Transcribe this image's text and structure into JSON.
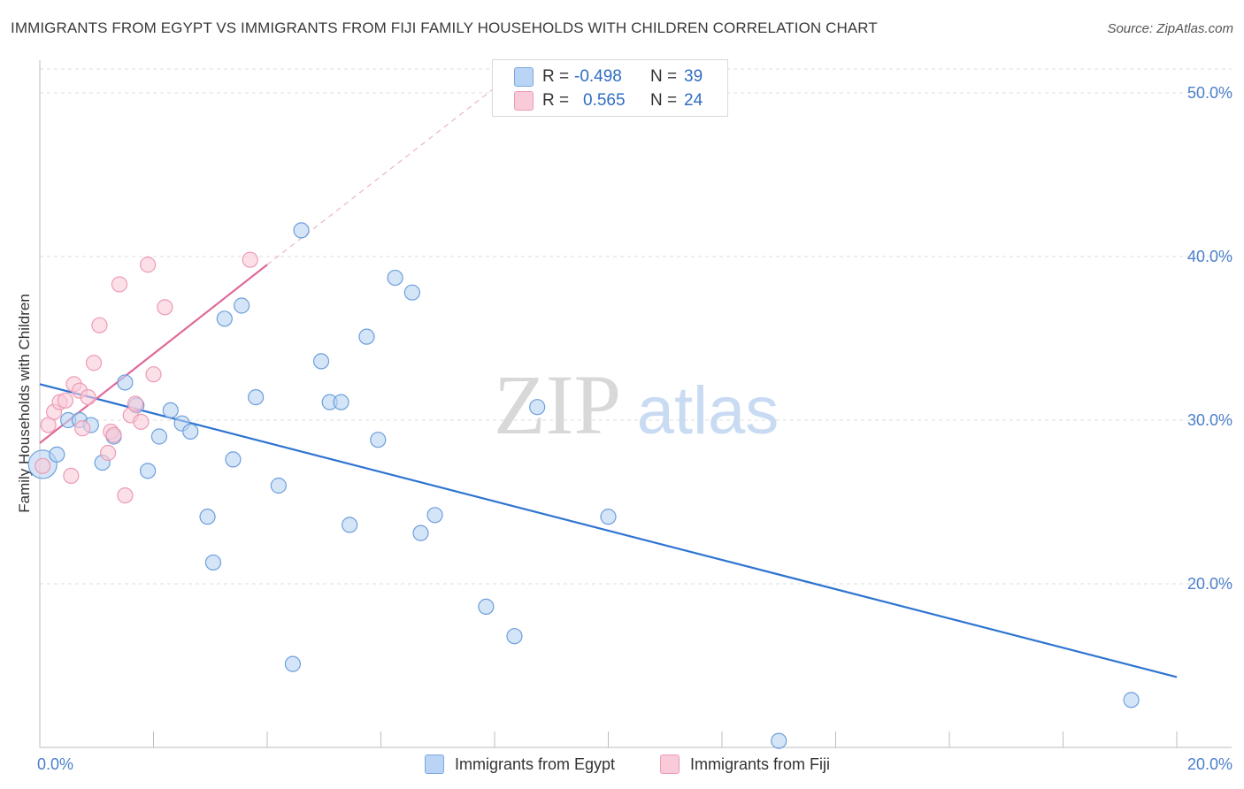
{
  "title": "IMMIGRANTS FROM EGYPT VS IMMIGRANTS FROM FIJI FAMILY HOUSEHOLDS WITH CHILDREN CORRELATION CHART",
  "source": "Source: ZipAtlas.com",
  "watermark": {
    "zip": "ZIP",
    "atlas": "atlas"
  },
  "stats": [
    {
      "r_label": "R =",
      "r_value": "-0.498",
      "n_label": "N =",
      "n_value": "39",
      "color": "#a9c8f0",
      "border": "#7aa7e0"
    },
    {
      "r_label": "R =",
      "r_value": "0.565",
      "n_label": "N =",
      "n_value": "24",
      "color": "#f7bfd0",
      "border": "#ee9ab5"
    }
  ],
  "legend": [
    {
      "label": "Immigrants from Egypt",
      "color": "#b9d4f4",
      "border": "#7aa7e0"
    },
    {
      "label": "Immigrants from Fiji",
      "color": "#f9cbd9",
      "border": "#ee9ab5"
    }
  ],
  "chart_data": {
    "type": "scatter",
    "title": "IMMIGRANTS FROM EGYPT VS IMMIGRANTS FROM FIJI FAMILY HOUSEHOLDS WITH CHILDREN CORRELATION CHART",
    "xlabel": "",
    "ylabel": "Family Households with Children",
    "xlim": [
      0,
      20
    ],
    "ylim": [
      10,
      52
    ],
    "x_tick_labels": [
      {
        "value": 0,
        "label": "0.0%"
      },
      {
        "value": 20,
        "label": "20.0%"
      }
    ],
    "y_tick_labels": [
      {
        "value": 20,
        "label": "20.0%"
      },
      {
        "value": 30,
        "label": "30.0%"
      },
      {
        "value": 40,
        "label": "40.0%"
      },
      {
        "value": 50,
        "label": "50.0%"
      }
    ],
    "series": [
      {
        "name": "Immigrants from Egypt",
        "color": "#b9d4f4",
        "stroke": "#6d9fdc",
        "line_color": "#2e74d0",
        "trend": {
          "x0": 0,
          "y0": 32.2,
          "x1": 20,
          "y1": 14.3
        },
        "points": [
          {
            "x": 0.05,
            "y": 27.3,
            "size": "large"
          },
          {
            "x": 0.3,
            "y": 27.9
          },
          {
            "x": 0.5,
            "y": 30.0
          },
          {
            "x": 0.7,
            "y": 30.0
          },
          {
            "x": 0.9,
            "y": 29.7
          },
          {
            "x": 1.1,
            "y": 27.4
          },
          {
            "x": 1.3,
            "y": 29.0
          },
          {
            "x": 1.5,
            "y": 32.3
          },
          {
            "x": 1.7,
            "y": 30.9
          },
          {
            "x": 1.9,
            "y": 26.9
          },
          {
            "x": 2.1,
            "y": 29.0
          },
          {
            "x": 2.3,
            "y": 30.6
          },
          {
            "x": 2.5,
            "y": 29.8
          },
          {
            "x": 2.65,
            "y": 29.3
          },
          {
            "x": 2.95,
            "y": 24.1
          },
          {
            "x": 3.05,
            "y": 21.3
          },
          {
            "x": 3.25,
            "y": 36.2
          },
          {
            "x": 3.4,
            "y": 27.6
          },
          {
            "x": 3.55,
            "y": 37.0
          },
          {
            "x": 3.8,
            "y": 31.4
          },
          {
            "x": 4.2,
            "y": 26.0
          },
          {
            "x": 4.45,
            "y": 15.1
          },
          {
            "x": 4.6,
            "y": 41.6
          },
          {
            "x": 4.95,
            "y": 33.6
          },
          {
            "x": 5.1,
            "y": 31.1
          },
          {
            "x": 5.3,
            "y": 31.1
          },
          {
            "x": 5.45,
            "y": 23.6
          },
          {
            "x": 5.75,
            "y": 35.1
          },
          {
            "x": 5.95,
            "y": 28.8
          },
          {
            "x": 6.25,
            "y": 38.7
          },
          {
            "x": 6.55,
            "y": 37.8
          },
          {
            "x": 6.7,
            "y": 23.1
          },
          {
            "x": 6.95,
            "y": 24.2
          },
          {
            "x": 7.85,
            "y": 18.6
          },
          {
            "x": 8.35,
            "y": 16.8
          },
          {
            "x": 8.75,
            "y": 30.8
          },
          {
            "x": 10.0,
            "y": 24.1
          },
          {
            "x": 13.0,
            "y": 10.4
          },
          {
            "x": 19.2,
            "y": 12.9
          }
        ]
      },
      {
        "name": "Immigrants from Fiji",
        "color": "#f9cbd9",
        "stroke": "#ee9ab5",
        "line_color": "#e0699a",
        "trend": {
          "x0": 0,
          "y0": 28.6,
          "x1": 4.0,
          "y1": 39.5
        },
        "trend_ext": {
          "x0": 4.0,
          "y0": 39.5,
          "x1": 8.0,
          "y1": 50.3
        },
        "points": [
          {
            "x": 0.05,
            "y": 27.2
          },
          {
            "x": 0.15,
            "y": 29.7
          },
          {
            "x": 0.25,
            "y": 30.5
          },
          {
            "x": 0.35,
            "y": 31.1
          },
          {
            "x": 0.45,
            "y": 31.2
          },
          {
            "x": 0.55,
            "y": 26.6
          },
          {
            "x": 0.6,
            "y": 32.2
          },
          {
            "x": 0.7,
            "y": 31.8
          },
          {
            "x": 0.75,
            "y": 29.5
          },
          {
            "x": 0.85,
            "y": 31.4
          },
          {
            "x": 0.95,
            "y": 33.5
          },
          {
            "x": 1.05,
            "y": 35.8
          },
          {
            "x": 1.2,
            "y": 28.0
          },
          {
            "x": 1.25,
            "y": 29.3
          },
          {
            "x": 1.3,
            "y": 29.1
          },
          {
            "x": 1.4,
            "y": 38.3
          },
          {
            "x": 1.5,
            "y": 25.4
          },
          {
            "x": 1.6,
            "y": 30.3
          },
          {
            "x": 1.68,
            "y": 31.0
          },
          {
            "x": 1.78,
            "y": 29.9
          },
          {
            "x": 1.9,
            "y": 39.5
          },
          {
            "x": 2.0,
            "y": 32.8
          },
          {
            "x": 2.2,
            "y": 36.9
          },
          {
            "x": 3.7,
            "y": 39.8
          }
        ]
      }
    ]
  }
}
